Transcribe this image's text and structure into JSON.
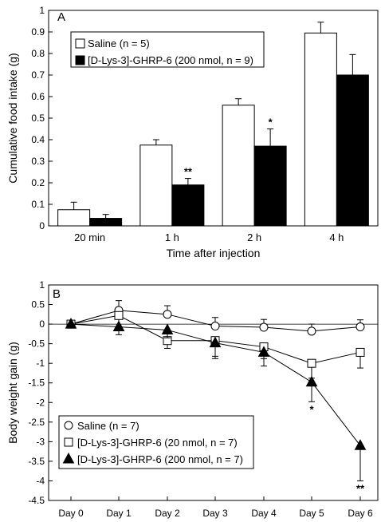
{
  "chart_data": [
    {
      "panel_label": "A",
      "type": "bar",
      "xlabel": "Time after injection",
      "ylabel": "Cumulative food intake (g)",
      "ylim": [
        0,
        1.0
      ],
      "yticks": [
        "0",
        "0.1",
        "0.2",
        "0.3",
        "0.4",
        "0.5",
        "0.6",
        "0.7",
        "0.8",
        "0.9",
        "1"
      ],
      "categories": [
        "20 min",
        "1 h",
        "2 h",
        "4 h"
      ],
      "legend_position": "top-left",
      "series": [
        {
          "name": "Saline (n = 5)",
          "fill": "#ffffff",
          "values": [
            0.075,
            0.375,
            0.56,
            0.895
          ],
          "errors": [
            0.035,
            0.025,
            0.03,
            0.05
          ],
          "annotations": [
            "",
            "",
            "",
            ""
          ]
        },
        {
          "name": "[D-Lys-3]-GHRP-6 (200 nmol, n = 9)",
          "fill": "#000000",
          "values": [
            0.035,
            0.19,
            0.37,
            0.7
          ],
          "errors": [
            0.018,
            0.03,
            0.08,
            0.095
          ],
          "annotations": [
            "",
            "**",
            "*",
            ""
          ]
        }
      ]
    },
    {
      "panel_label": "B",
      "type": "line",
      "xlabel": "",
      "ylabel": "Body weight gain (g)",
      "ylim": [
        -4.5,
        1.0
      ],
      "yticks": [
        "1",
        "0.5",
        "0",
        "-0.5",
        "-1",
        "-1.5",
        "-2",
        "-2.5",
        "-3",
        "-3.5",
        "-4",
        "-4.5"
      ],
      "categories": [
        "Day 0",
        "Day 1",
        "Day 2",
        "Day 3",
        "Day 4",
        "Day 5",
        "Day 6"
      ],
      "legend_position": "bottom-left",
      "series": [
        {
          "name": "Saline (n = 7)",
          "marker": "circle",
          "values": [
            0,
            0.35,
            0.25,
            -0.05,
            -0.08,
            -0.18,
            -0.07
          ],
          "errors": [
            0,
            0.25,
            0.22,
            0.22,
            0.2,
            0.18,
            0.18
          ],
          "annotations": [
            "",
            "",
            "",
            "",
            "",
            "",
            ""
          ]
        },
        {
          "name": "[D-Lys-3]-GHRP-6 (20 nmol, n = 7)",
          "marker": "square",
          "values": [
            0,
            0.22,
            -0.42,
            -0.42,
            -0.58,
            -1.0,
            -0.72
          ],
          "errors": [
            0,
            0.3,
            0.2,
            0.4,
            0.3,
            0.38,
            0.4
          ],
          "annotations": [
            "",
            "",
            "",
            "",
            "",
            "",
            ""
          ]
        },
        {
          "name": "[D-Lys-3]-GHRP-6 (200 nmol, n = 7)",
          "marker": "triangle",
          "values": [
            0,
            -0.07,
            -0.15,
            -0.48,
            -0.72,
            -1.48,
            -3.1
          ],
          "errors": [
            0,
            0.2,
            0.2,
            0.4,
            0.35,
            0.5,
            0.9
          ],
          "annotations": [
            "",
            "",
            "",
            "",
            "",
            "*",
            "**"
          ]
        }
      ]
    }
  ]
}
